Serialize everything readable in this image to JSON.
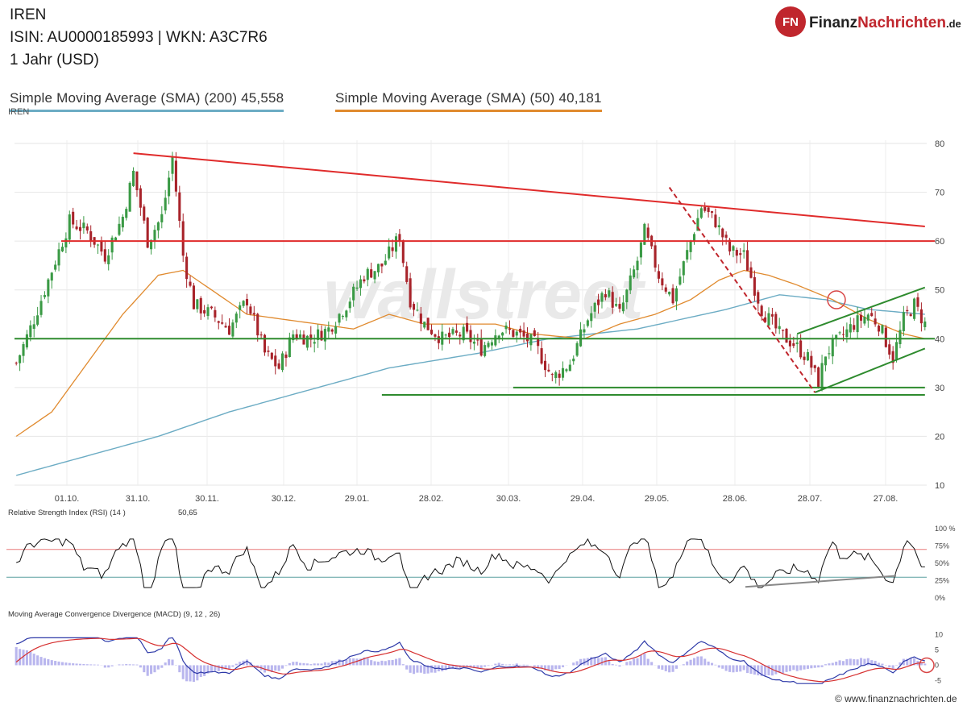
{
  "header": {
    "title": "IREN",
    "isin": "ISIN: AU0000185993  | WKN: A3C7R6",
    "period": "1 Jahr (USD)"
  },
  "legend": {
    "sma200": "Simple Moving Average (SMA) (200) 45,558",
    "sma50": "Simple Moving Average (SMA) (50) 40,181"
  },
  "chart_label": "IREN",
  "rsi_label": "Relative Strength Index (RSI) (14 )",
  "rsi_value": "50,65",
  "macd_label": "Moving Average Convergence Divergence (MACD) (9, 12 , 26)",
  "logo": {
    "badge": "FN",
    "part1": "Finanz",
    "part2": "Nachrichten",
    "tld": ".de"
  },
  "watermark": "wallstreet",
  "footer": "© www.finanznachrichten.de",
  "colors": {
    "up": "#3a9a45",
    "down": "#a8232a",
    "sma200": "#6cacc4",
    "sma50": "#e08a2e",
    "resistance": "#e02b2b",
    "support": "#2e8b2e"
  },
  "chart_data": {
    "type": "candlestick",
    "x_ticks": [
      "01.10.",
      "31.10.",
      "30.11.",
      "30.12.",
      "29.01.",
      "28.02.",
      "30.03.",
      "29.04.",
      "29.05.",
      "28.06.",
      "28.07.",
      "27.08."
    ],
    "y_ticks": [
      10,
      20,
      30,
      40,
      50,
      60,
      70,
      80
    ],
    "ylim": [
      10,
      80
    ],
    "price_anchors": [
      [
        0,
        35
      ],
      [
        5,
        44
      ],
      [
        10,
        54
      ],
      [
        15,
        64
      ],
      [
        20,
        62
      ],
      [
        25,
        57
      ],
      [
        30,
        65
      ],
      [
        33,
        74
      ],
      [
        37,
        60
      ],
      [
        41,
        65
      ],
      [
        44,
        77
      ],
      [
        47,
        57
      ],
      [
        50,
        47
      ],
      [
        55,
        45
      ],
      [
        60,
        42
      ],
      [
        65,
        48
      ],
      [
        70,
        37
      ],
      [
        74,
        34
      ],
      [
        78,
        41
      ],
      [
        83,
        40
      ],
      [
        88,
        42
      ],
      [
        93,
        47
      ],
      [
        98,
        53
      ],
      [
        103,
        55
      ],
      [
        108,
        61
      ],
      [
        109,
        56
      ],
      [
        111,
        48
      ],
      [
        115,
        43
      ],
      [
        120,
        40
      ],
      [
        126,
        41
      ],
      [
        131,
        38
      ],
      [
        136,
        42
      ],
      [
        141,
        41
      ],
      [
        146,
        39
      ],
      [
        151,
        32
      ],
      [
        156,
        35
      ],
      [
        161,
        44
      ],
      [
        166,
        50
      ],
      [
        170,
        45
      ],
      [
        175,
        56
      ],
      [
        177,
        62
      ],
      [
        181,
        53
      ],
      [
        185,
        48
      ],
      [
        190,
        60
      ],
      [
        193,
        67
      ],
      [
        197,
        64
      ],
      [
        201,
        58
      ],
      [
        205,
        57
      ],
      [
        210,
        46
      ],
      [
        215,
        41
      ],
      [
        219,
        39
      ],
      [
        223,
        36
      ],
      [
        226,
        31
      ],
      [
        228,
        37
      ],
      [
        232,
        40
      ],
      [
        236,
        43
      ],
      [
        240,
        45
      ],
      [
        243,
        43
      ],
      [
        247,
        36
      ],
      [
        250,
        44
      ],
      [
        253,
        47
      ],
      [
        256,
        43
      ]
    ],
    "sma50_anchors": [
      [
        0,
        20
      ],
      [
        10,
        25
      ],
      [
        20,
        35
      ],
      [
        30,
        45
      ],
      [
        40,
        53
      ],
      [
        47,
        54
      ],
      [
        55,
        50
      ],
      [
        65,
        45
      ],
      [
        75,
        44
      ],
      [
        85,
        43
      ],
      [
        95,
        42
      ],
      [
        105,
        45
      ],
      [
        115,
        43
      ],
      [
        125,
        43
      ],
      [
        135,
        43
      ],
      [
        145,
        41
      ],
      [
        160,
        40
      ],
      [
        170,
        43
      ],
      [
        180,
        45
      ],
      [
        190,
        48
      ],
      [
        198,
        52
      ],
      [
        205,
        54
      ],
      [
        212,
        53
      ],
      [
        220,
        51
      ],
      [
        230,
        48
      ],
      [
        240,
        44
      ],
      [
        250,
        41
      ],
      [
        256,
        40
      ]
    ],
    "sma200_anchors": [
      [
        0,
        12
      ],
      [
        20,
        16
      ],
      [
        40,
        20
      ],
      [
        60,
        25
      ],
      [
        80,
        29
      ],
      [
        105,
        34
      ],
      [
        130,
        37
      ],
      [
        150,
        40
      ],
      [
        175,
        42
      ],
      [
        200,
        46
      ],
      [
        215,
        49
      ],
      [
        228,
        48
      ],
      [
        240,
        46
      ],
      [
        256,
        45
      ]
    ],
    "lines": {
      "resistance_trend": [
        [
          33,
          78
        ],
        [
          256,
          63
        ]
      ],
      "resistance_60": 60,
      "support_40": 40,
      "support_30": [
        [
          140,
          30
        ],
        [
          256,
          30
        ]
      ],
      "support_28_5": [
        [
          103,
          28.5
        ],
        [
          256,
          28.5
        ]
      ],
      "channel_upper": [
        [
          220,
          41
        ],
        [
          256,
          50.5
        ]
      ],
      "channel_lower": [
        [
          225,
          29
        ],
        [
          256,
          38
        ]
      ],
      "dashed_down": [
        [
          184,
          71
        ],
        [
          225,
          29
        ]
      ]
    },
    "rsi_ticks": [
      "100 %",
      "75%",
      "50%",
      "25%",
      "0%"
    ],
    "rsi_levels": [
      70,
      30
    ],
    "macd_ticks": [
      10,
      5,
      0,
      -5
    ]
  }
}
